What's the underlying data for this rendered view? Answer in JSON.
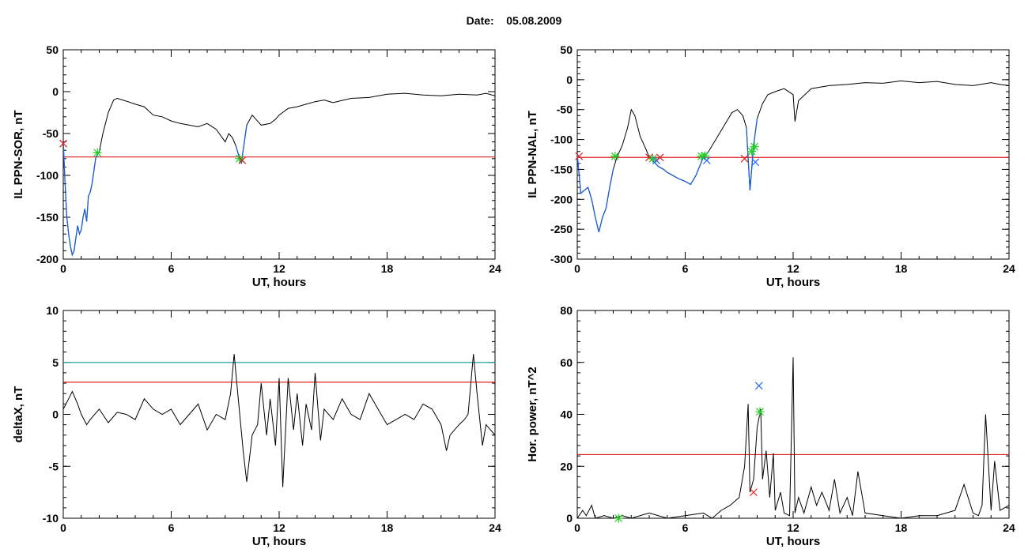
{
  "header": {
    "date_label": "Date:",
    "date_value": "05.08.2009"
  },
  "colors": {
    "trace": "#000000",
    "highlight": "#1a5fd6",
    "threshold": "#e02020",
    "threshold2": "#2aa6a6",
    "marker_start": "#22cc22",
    "marker_end": "#e02020",
    "marker_peak": "#2266ff"
  },
  "chart_data": [
    {
      "id": "ppn-sor",
      "type": "line",
      "xlabel": "UT, hours",
      "ylabel": "IL PPN-SOR, nT",
      "xlim": [
        0,
        24
      ],
      "ylim": [
        -200,
        50
      ],
      "xticks": [
        0,
        6,
        12,
        18,
        24
      ],
      "yticks": [
        -200,
        -150,
        -100,
        -50,
        0,
        50
      ],
      "threshold": -78,
      "series": [
        {
          "x": [
            0,
            0.1,
            0.2,
            0.3,
            0.4,
            0.5,
            0.6,
            0.7,
            0.8,
            0.9,
            1.0,
            1.1,
            1.2,
            1.3,
            1.4,
            1.5,
            1.6,
            1.7,
            1.8,
            1.9,
            2.0,
            2.2,
            2.5,
            2.8,
            3.0,
            3.3,
            3.6,
            4.0,
            4.5,
            5.0,
            5.5,
            6.0,
            6.5,
            7.0,
            7.5,
            8.0,
            8.5,
            9.0,
            9.2,
            9.4,
            9.6,
            9.8,
            9.9,
            10.0,
            10.2,
            10.5,
            11.0,
            11.5,
            11.8,
            12.0,
            12.5,
            13.0,
            13.5,
            14.0,
            14.5,
            15.0,
            16.0,
            17.0,
            18.0,
            19.0,
            20.0,
            21.0,
            22.0,
            23.0,
            23.5,
            24.0
          ],
          "y": [
            -60,
            -110,
            -150,
            -170,
            -185,
            -195,
            -190,
            -175,
            -160,
            -170,
            -165,
            -150,
            -140,
            -155,
            -125,
            -120,
            -110,
            -95,
            -80,
            -75,
            -72,
            -50,
            -25,
            -10,
            -8,
            -10,
            -12,
            -15,
            -18,
            -28,
            -30,
            -35,
            -38,
            -40,
            -42,
            -38,
            -45,
            -60,
            -50,
            -55,
            -65,
            -80,
            -85,
            -70,
            -40,
            -28,
            -40,
            -38,
            -33,
            -28,
            -20,
            -18,
            -15,
            -12,
            -10,
            -13,
            -8,
            -7,
            -3,
            -2,
            -4,
            -5,
            -3,
            -4,
            -2,
            -5
          ]
        }
      ],
      "highlight_segments": [
        [
          0,
          2.1
        ],
        [
          9.5,
          10.2
        ]
      ],
      "markers": [
        {
          "x": 0.0,
          "y": -62,
          "kind": "end"
        },
        {
          "x": 1.9,
          "y": -73,
          "kind": "start"
        },
        {
          "x": 9.8,
          "y": -80,
          "kind": "start"
        },
        {
          "x": 9.95,
          "y": -82,
          "kind": "end"
        }
      ]
    },
    {
      "id": "ppn-nal",
      "type": "line",
      "xlabel": "UT, hours",
      "ylabel": "IL PPN-NAL, nT",
      "xlim": [
        0,
        24
      ],
      "ylim": [
        -300,
        50
      ],
      "xticks": [
        0,
        6,
        12,
        18,
        24
      ],
      "yticks": [
        -300,
        -250,
        -200,
        -150,
        -100,
        -50,
        0,
        50
      ],
      "threshold": -130,
      "series": [
        {
          "x": [
            0,
            0.2,
            0.4,
            0.6,
            0.8,
            1.0,
            1.2,
            1.4,
            1.6,
            1.8,
            2.0,
            2.2,
            2.5,
            2.8,
            3.0,
            3.2,
            3.5,
            3.8,
            4.0,
            4.2,
            4.5,
            4.8,
            5.0,
            5.3,
            5.6,
            6.0,
            6.3,
            6.6,
            7.0,
            7.3,
            7.6,
            8.0,
            8.3,
            8.6,
            8.9,
            9.2,
            9.4,
            9.6,
            9.8,
            10.0,
            10.3,
            10.6,
            11.0,
            11.5,
            12.0,
            12.1,
            12.3,
            13.0,
            14.0,
            15.0,
            16.0,
            17.0,
            18.0,
            19.0,
            20.0,
            21.0,
            22.0,
            23.0,
            23.5,
            24.0
          ],
          "y": [
            -125,
            -190,
            -185,
            -180,
            -200,
            -230,
            -255,
            -230,
            -215,
            -180,
            -150,
            -130,
            -110,
            -80,
            -50,
            -60,
            -95,
            -115,
            -130,
            -135,
            -145,
            -150,
            -155,
            -160,
            -165,
            -170,
            -175,
            -160,
            -130,
            -120,
            -105,
            -85,
            -70,
            -55,
            -50,
            -60,
            -80,
            -185,
            -110,
            -65,
            -40,
            -25,
            -20,
            -15,
            -25,
            -70,
            -35,
            -15,
            -10,
            -8,
            -5,
            -6,
            -2,
            -5,
            -3,
            -8,
            -10,
            -5,
            -8,
            -10
          ]
        }
      ],
      "highlight_segments": [
        [
          0,
          2.1
        ],
        [
          4.0,
          7.3
        ],
        [
          9.3,
          10.1
        ]
      ],
      "markers": [
        {
          "x": 0.1,
          "y": -128,
          "kind": "end"
        },
        {
          "x": 2.1,
          "y": -128,
          "kind": "start"
        },
        {
          "x": 4.0,
          "y": -130,
          "kind": "end"
        },
        {
          "x": 4.2,
          "y": -132,
          "kind": "start"
        },
        {
          "x": 4.4,
          "y": -135,
          "kind": "peak"
        },
        {
          "x": 4.6,
          "y": -130,
          "kind": "end"
        },
        {
          "x": 6.9,
          "y": -128,
          "kind": "start"
        },
        {
          "x": 7.1,
          "y": -127,
          "kind": "start"
        },
        {
          "x": 7.2,
          "y": -135,
          "kind": "peak"
        },
        {
          "x": 9.3,
          "y": -132,
          "kind": "end"
        },
        {
          "x": 9.7,
          "y": -120,
          "kind": "start"
        },
        {
          "x": 9.85,
          "y": -112,
          "kind": "start"
        },
        {
          "x": 9.9,
          "y": -138,
          "kind": "peak"
        }
      ]
    },
    {
      "id": "deltax",
      "type": "line",
      "xlabel": "UT, hours",
      "ylabel": "deltaX, nT",
      "xlim": [
        0,
        24
      ],
      "ylim": [
        -10,
        10
      ],
      "xticks": [
        0,
        6,
        12,
        18,
        24
      ],
      "yticks": [
        -10,
        -5,
        0,
        5,
        10
      ],
      "threshold": 3.1,
      "threshold2": 5.0,
      "series": [
        {
          "x": [
            0,
            0.3,
            0.5,
            0.8,
            1.0,
            1.3,
            1.5,
            2.0,
            2.5,
            3.0,
            3.5,
            4.0,
            4.5,
            5.0,
            5.5,
            6.0,
            6.5,
            7.0,
            7.5,
            8.0,
            8.5,
            9.0,
            9.3,
            9.5,
            9.7,
            10.0,
            10.2,
            10.5,
            10.8,
            11.0,
            11.3,
            11.5,
            11.8,
            12.0,
            12.2,
            12.5,
            12.8,
            13.0,
            13.3,
            13.5,
            13.8,
            14.0,
            14.3,
            14.5,
            15.0,
            15.5,
            16.0,
            16.5,
            17.0,
            17.5,
            18.0,
            18.5,
            19.0,
            19.5,
            20.0,
            20.5,
            21.0,
            21.3,
            21.5,
            22.0,
            22.3,
            22.5,
            22.8,
            23.0,
            23.3,
            23.5,
            24.0
          ],
          "y": [
            0.5,
            1.5,
            2.2,
            1.0,
            0.0,
            -1.0,
            -0.5,
            0.5,
            -0.8,
            0.2,
            0.0,
            -0.5,
            1.5,
            0.5,
            0.0,
            0.5,
            -1.0,
            0.0,
            1.0,
            -1.5,
            0.0,
            -0.5,
            2.0,
            5.8,
            2.0,
            -3.5,
            -6.5,
            -2.0,
            -1.0,
            3.0,
            -2.0,
            1.5,
            -3.0,
            3.5,
            -7.0,
            3.5,
            -1.5,
            2.0,
            -3.0,
            1.0,
            -1.5,
            4.0,
            -2.5,
            0.5,
            -0.5,
            1.5,
            0.0,
            -0.5,
            2.0,
            0.5,
            -1.0,
            -0.5,
            0.0,
            -0.5,
            1.0,
            0.5,
            -1.0,
            -3.5,
            -2.0,
            -1.0,
            -0.5,
            0.0,
            5.8,
            2.0,
            -3.0,
            -1.0,
            -2.0
          ]
        }
      ]
    },
    {
      "id": "hor-power",
      "type": "line",
      "xlabel": "UT, hours",
      "ylabel": "Hor. power, nT^2",
      "xlim": [
        0,
        24
      ],
      "ylim": [
        0,
        80
      ],
      "xticks": [
        0,
        6,
        12,
        18,
        24
      ],
      "yticks": [
        0,
        20,
        40,
        60,
        80
      ],
      "threshold": 24.5,
      "series": [
        {
          "x": [
            0,
            0.3,
            0.5,
            0.8,
            1.0,
            1.5,
            2.0,
            2.5,
            3.0,
            4.0,
            5.0,
            6.0,
            7.0,
            7.5,
            8.0,
            8.5,
            9.0,
            9.3,
            9.5,
            9.6,
            9.8,
            10.0,
            10.2,
            10.3,
            10.5,
            10.7,
            10.9,
            11.0,
            11.3,
            11.5,
            11.8,
            12.0,
            12.1,
            12.3,
            12.6,
            13.0,
            13.3,
            13.6,
            14.0,
            14.3,
            14.6,
            15.0,
            15.3,
            15.6,
            16.0,
            17.0,
            18.0,
            19.0,
            20.0,
            20.5,
            21.0,
            21.5,
            22.0,
            22.3,
            22.5,
            22.7,
            23.0,
            23.2,
            23.5,
            24.0
          ],
          "y": [
            0,
            3,
            1,
            5,
            0,
            1,
            0,
            1,
            0,
            2,
            0,
            1,
            2,
            0,
            3,
            5,
            8,
            20,
            44,
            10,
            15,
            35,
            42,
            15,
            26,
            8,
            25,
            3,
            10,
            2,
            1,
            62,
            2,
            8,
            2,
            12,
            5,
            10,
            3,
            15,
            2,
            8,
            1,
            18,
            2,
            1,
            0,
            1,
            1,
            2,
            3,
            13,
            2,
            1,
            5,
            40,
            3,
            22,
            3,
            5
          ]
        }
      ],
      "markers": [
        {
          "x": 2.3,
          "y": 0,
          "kind": "start"
        },
        {
          "x": 10.1,
          "y": 51,
          "kind": "peak"
        },
        {
          "x": 10.15,
          "y": 41,
          "kind": "start"
        },
        {
          "x": 9.8,
          "y": 10,
          "kind": "end"
        }
      ]
    }
  ]
}
